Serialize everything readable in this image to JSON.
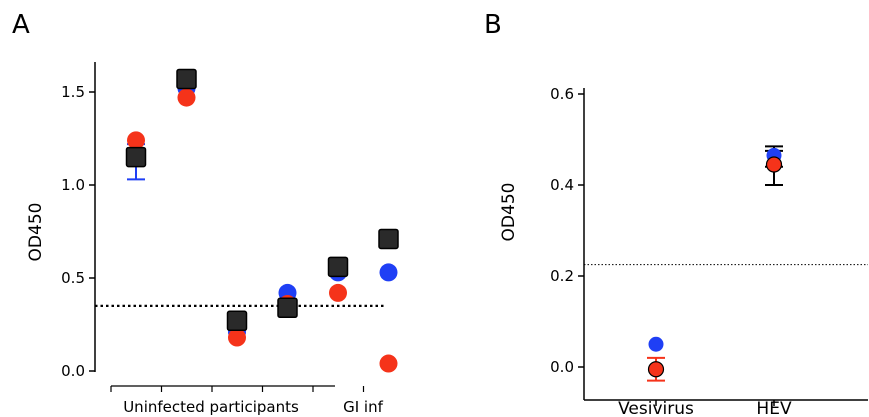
{
  "figure": {
    "panel_a_letter": "A",
    "panel_b_letter": "B"
  },
  "colors": {
    "blue": "#1f3ff5",
    "red": "#f5331a",
    "black": "#2a2a2a",
    "axis": "#000000"
  },
  "chart_data": [
    {
      "type": "scatter",
      "panel": "A",
      "title": "",
      "ylabel": "OD450",
      "xlabel": "",
      "ylim": [
        0,
        1.6
      ],
      "yticks": [
        0.0,
        0.5,
        1.0,
        1.5
      ],
      "ytick_labels": [
        "0.0",
        "0.5",
        "1.0",
        "1.5"
      ],
      "group_labels": [
        {
          "text": "Uninfected participants",
          "from": 1,
          "to": 5
        },
        {
          "text": "GI inf",
          "from": 6,
          "to": 6
        }
      ],
      "cutoff": 0.35,
      "cutoff_style": "dotted",
      "x": [
        1,
        2,
        3,
        4,
        5,
        6
      ],
      "series": [
        {
          "marker": "circle",
          "color": "blue",
          "values": [
            1.16,
            1.52,
            0.21,
            0.42,
            0.53,
            0.53
          ],
          "error_low": [
            1.03,
            null,
            null,
            null,
            null,
            null
          ],
          "error_high": [
            1.22,
            null,
            null,
            null,
            null,
            null
          ]
        },
        {
          "marker": "circle",
          "color": "red",
          "values": [
            1.24,
            1.47,
            0.18,
            0.36,
            0.42,
            0.04
          ]
        },
        {
          "marker": "square",
          "color": "black",
          "values": [
            1.15,
            1.57,
            0.27,
            0.34,
            0.56,
            0.71
          ]
        }
      ]
    },
    {
      "type": "scatter",
      "panel": "B",
      "title": "",
      "ylabel": "OD450",
      "xlabel": "",
      "ylim": [
        -0.04,
        0.6
      ],
      "yticks": [
        0.0,
        0.2,
        0.4,
        0.6
      ],
      "ytick_labels": [
        "0.0",
        "0.2",
        "0.4",
        "0.6"
      ],
      "categories": [
        "Vesivirus",
        "HEV"
      ],
      "cutoff": 0.225,
      "cutoff_style": "dotted",
      "series": [
        {
          "marker": "circle",
          "color": "blue",
          "values": [
            0.05,
            0.465
          ],
          "error_low": [
            null,
            0.44
          ],
          "error_high": [
            null,
            0.485
          ]
        },
        {
          "marker": "circle",
          "color": "red",
          "values": [
            -0.005,
            0.445
          ],
          "error_low": [
            -0.03,
            0.4
          ],
          "error_high": [
            0.02,
            0.475
          ]
        }
      ]
    }
  ]
}
